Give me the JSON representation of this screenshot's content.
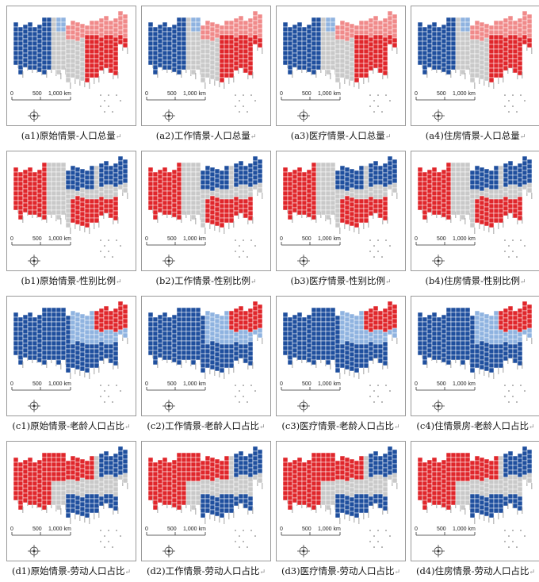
{
  "scalebar": {
    "tick0": "0",
    "tick1": "500",
    "tick2": "1,000 km"
  },
  "return_mark": "↵",
  "colors": {
    "red": "#e0262b",
    "blue": "#1f4f9e",
    "grey": "#c9c9c9",
    "light_blue": "#8fb3e0",
    "light_red": "#f08a8a"
  },
  "rows": [
    {
      "id": "a",
      "palette": "pop",
      "panels": [
        {
          "caption": "(a1)原始情景-人口总量"
        },
        {
          "caption": "(a2)工作情景-人口总量"
        },
        {
          "caption": "(a3)医疗情景-人口总量"
        },
        {
          "caption": "(a4)住房情景-人口总量"
        }
      ]
    },
    {
      "id": "b",
      "palette": "sex",
      "panels": [
        {
          "caption": "(b1)原始情景-性别比例"
        },
        {
          "caption": "(b2)工作情景-性别比例"
        },
        {
          "caption": "(b3)医疗情景-性别比例"
        },
        {
          "caption": "(b4)住房情景-性别比例"
        }
      ]
    },
    {
      "id": "c",
      "palette": "old",
      "panels": [
        {
          "caption": "(c1)原始情景-老龄人口占比"
        },
        {
          "caption": "(c2)工作情景-老龄人口占比"
        },
        {
          "caption": "(c3)医疗情景-老龄人口占比"
        },
        {
          "caption": "(c4)住情景房-老龄人口占比"
        }
      ]
    },
    {
      "id": "d",
      "palette": "labor",
      "panels": [
        {
          "caption": "(d1)原始情景-劳动人口占比"
        },
        {
          "caption": "(d2)工作情景-劳动人口占比"
        },
        {
          "caption": "(d3)医疗情景-劳动人口占比"
        },
        {
          "caption": "(d4)住房情景-劳动人口占比"
        }
      ]
    }
  ]
}
